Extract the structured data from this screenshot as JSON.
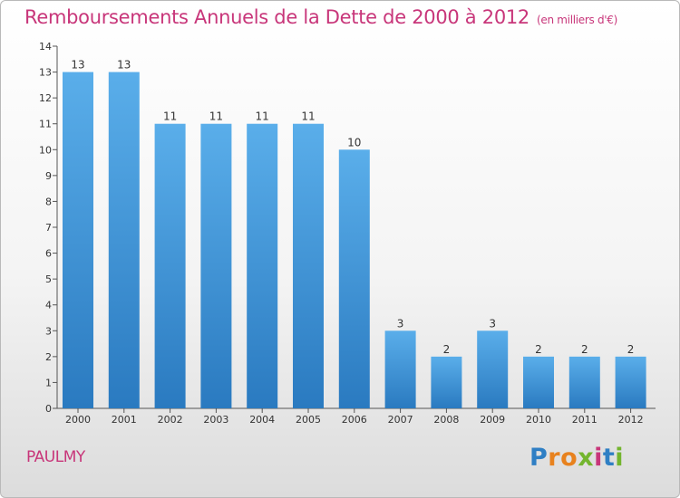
{
  "header": {
    "title": "Remboursements Annuels de la Dette de 2000 à 2012",
    "unit": "(en milliers d'€)"
  },
  "footer": {
    "place": "PAULMY",
    "logo": "Proxiti",
    "logo_letters": [
      "P",
      "r",
      "o",
      "x",
      "i",
      "t",
      "i"
    ]
  },
  "colors": {
    "title": "#c8367a",
    "bar_top": "#5aaeea",
    "bar_bottom": "#2a7ac0",
    "axis": "#555555"
  },
  "chart_data": {
    "type": "bar",
    "categories": [
      "2000",
      "2001",
      "2002",
      "2003",
      "2004",
      "2005",
      "2006",
      "2007",
      "2008",
      "2009",
      "2010",
      "2011",
      "2012"
    ],
    "values": [
      13,
      13,
      11,
      11,
      11,
      11,
      10,
      3,
      2,
      3,
      2,
      2,
      2
    ],
    "data_labels": [
      "13",
      "13",
      "11",
      "11",
      "11",
      "11",
      "10",
      "3",
      "2",
      "3",
      "2",
      "2",
      "2"
    ],
    "yticks": [
      "0",
      "1",
      "2",
      "3",
      "4",
      "5",
      "6",
      "7",
      "8",
      "9",
      "10",
      "11",
      "12",
      "13",
      "14"
    ],
    "title": "Remboursements Annuels de la Dette de 2000 à 2012",
    "xlabel": "",
    "ylabel": "",
    "ylim": [
      0,
      14
    ],
    "grid": false
  }
}
